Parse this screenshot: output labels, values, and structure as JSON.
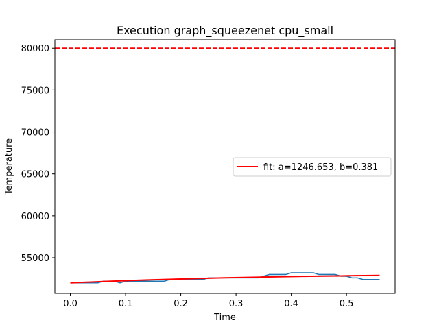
{
  "chart_data": {
    "type": "line",
    "title": "Execution graph_squeezenet cpu_small",
    "xlabel": "Time",
    "ylabel": "Temperature",
    "xlim": [
      -0.028,
      0.588
    ],
    "ylim": [
      50750,
      81000
    ],
    "xticks": [
      0.0,
      0.1,
      0.2,
      0.3,
      0.4,
      0.5
    ],
    "xtick_labels": [
      "0.0",
      "0.1",
      "0.2",
      "0.3",
      "0.4",
      "0.5"
    ],
    "yticks": [
      55000,
      60000,
      65000,
      70000,
      75000,
      80000
    ],
    "ytick_labels": [
      "55000",
      "60000",
      "65000",
      "70000",
      "75000",
      "80000"
    ],
    "grid": false,
    "legend_position": "center-right",
    "series": [
      {
        "kind": "measured",
        "color": "#1f77b4",
        "x": [
          0.0,
          0.01,
          0.02,
          0.03,
          0.04,
          0.05,
          0.06,
          0.07,
          0.08,
          0.09,
          0.1,
          0.11,
          0.12,
          0.13,
          0.14,
          0.15,
          0.16,
          0.17,
          0.18,
          0.19,
          0.2,
          0.21,
          0.22,
          0.23,
          0.24,
          0.25,
          0.26,
          0.27,
          0.28,
          0.29,
          0.3,
          0.31,
          0.32,
          0.33,
          0.34,
          0.35,
          0.36,
          0.37,
          0.38,
          0.39,
          0.4,
          0.41,
          0.42,
          0.43,
          0.44,
          0.45,
          0.46,
          0.47,
          0.48,
          0.49,
          0.5,
          0.51,
          0.52,
          0.53,
          0.54,
          0.55,
          0.56
        ],
        "y": [
          52000,
          52000,
          52000,
          52000,
          52000,
          52000,
          52200,
          52200,
          52200,
          52000,
          52200,
          52200,
          52200,
          52200,
          52200,
          52200,
          52200,
          52200,
          52400,
          52400,
          52400,
          52400,
          52400,
          52400,
          52400,
          52600,
          52600,
          52600,
          52600,
          52600,
          52600,
          52600,
          52600,
          52600,
          52600,
          52800,
          53000,
          53000,
          53000,
          53000,
          53200,
          53200,
          53200,
          53200,
          53200,
          53000,
          53000,
          53000,
          53000,
          52800,
          52800,
          52600,
          52600,
          52400,
          52400,
          52400,
          52400
        ]
      },
      {
        "kind": "fit",
        "name": "fit: a=1246.653, b=0.381",
        "color": "#ff0000",
        "x": [
          0.0,
          0.07,
          0.14,
          0.21,
          0.28,
          0.35,
          0.42,
          0.49,
          0.56
        ],
        "y": [
          52000,
          52190,
          52350,
          52490,
          52610,
          52700,
          52780,
          52840,
          52900
        ]
      }
    ],
    "reference_line": {
      "y": 80000,
      "color": "#ff0000",
      "style": "dashed"
    }
  }
}
